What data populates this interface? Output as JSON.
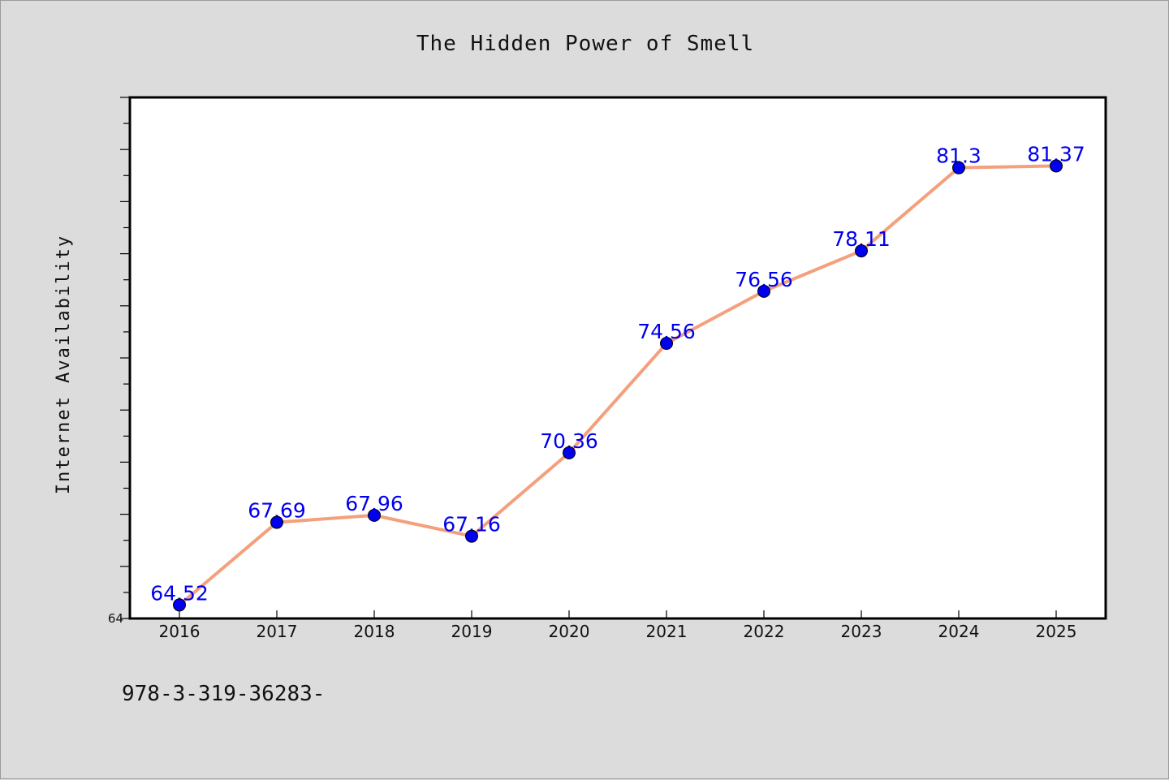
{
  "chart_data": {
    "type": "line",
    "title": "The Hidden Power of Smell",
    "xlabel": "",
    "ylabel": "Internet Availability",
    "categories": [
      "2016",
      "2017",
      "2018",
      "2019",
      "2020",
      "2021",
      "2022",
      "2023",
      "2024",
      "2025"
    ],
    "series": [
      {
        "values": [
          64.52,
          67.69,
          67.96,
          67.16,
          70.36,
          74.56,
          76.56,
          78.11,
          81.3,
          81.37
        ],
        "data_labels": [
          "64.52",
          "67.69",
          "67.96",
          "67.16",
          "70.36",
          "74.56",
          "76.56",
          "78.11",
          "81.3",
          "81.37"
        ],
        "line_color": "#f4a07c",
        "marker_color": "#0000ee"
      }
    ],
    "ylim": [
      64,
      84
    ],
    "y_tick_labels": [
      "64"
    ],
    "grid": false,
    "legend": "none"
  },
  "footer_text": "978-3-319-36283-",
  "colors": {
    "background": "#dcdcdc",
    "plot_background": "#ffffff",
    "line": "#f4a07c",
    "marker": "#0000ee",
    "data_label": "#0000ee"
  }
}
